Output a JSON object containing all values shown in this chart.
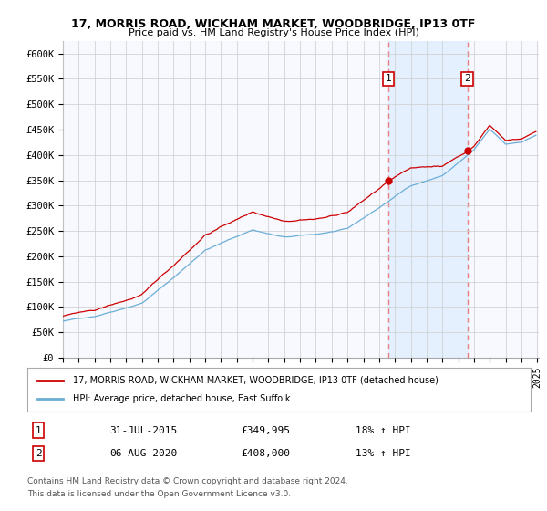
{
  "title": "17, MORRIS ROAD, WICKHAM MARKET, WOODBRIDGE, IP13 0TF",
  "subtitle": "Price paid vs. HM Land Registry's House Price Index (HPI)",
  "ylim": [
    0,
    625000
  ],
  "yticks": [
    0,
    50000,
    100000,
    150000,
    200000,
    250000,
    300000,
    350000,
    400000,
    450000,
    500000,
    550000,
    600000
  ],
  "ytick_labels": [
    "£0",
    "£50K",
    "£100K",
    "£150K",
    "£200K",
    "£250K",
    "£300K",
    "£350K",
    "£400K",
    "£450K",
    "£500K",
    "£550K",
    "£600K"
  ],
  "sale1_price": 349995,
  "sale1_date_str": "31-JUL-2015",
  "sale1_price_str": "£349,995",
  "sale1_hpi_str": "18% ↑ HPI",
  "sale2_price": 408000,
  "sale2_date_str": "06-AUG-2020",
  "sale2_price_str": "£408,000",
  "sale2_hpi_str": "13% ↑ HPI",
  "sale1_year": 2015.58,
  "sale2_year": 2020.58,
  "hpi_line_color": "#6baed6",
  "price_line_color": "#cc0000",
  "sale_marker_color": "#cc0000",
  "dashed_line_color": "#e88080",
  "shade_color": "#ddeeff",
  "background_color": "#ffffff",
  "chart_bg_color": "#f8f8ff",
  "grid_color": "#cccccc",
  "legend_line1": "17, MORRIS ROAD, WICKHAM MARKET, WOODBRIDGE, IP13 0TF (detached house)",
  "legend_line2": "HPI: Average price, detached house, East Suffolk",
  "footnote1": "Contains HM Land Registry data © Crown copyright and database right 2024.",
  "footnote2": "This data is licensed under the Open Government Licence v3.0."
}
